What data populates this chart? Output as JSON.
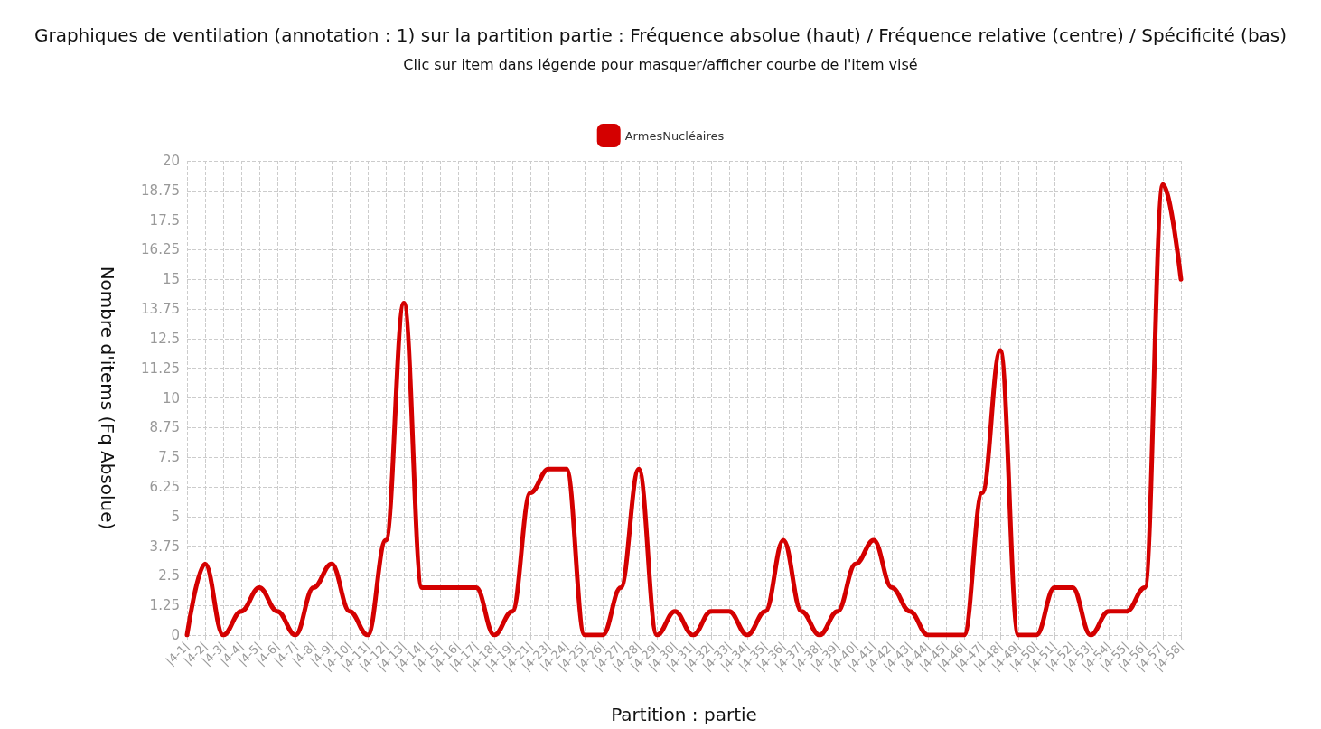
{
  "chart_data": {
    "type": "line",
    "title": "Graphiques de ventilation (annotation : 1) sur la partition partie : Fréquence absolue (haut) / Fréquence relative (centre) / Spécificité (bas)",
    "subtitle": "Clic sur item dans légende pour masquer/afficher courbe de l'item visé",
    "xlabel": "Partition : partie",
    "ylabel": "Nombre d'items (Fq Absolue)",
    "categories": [
      "|4-1|",
      "|4-2|",
      "|4-3|",
      "|4-4|",
      "|4-5|",
      "|4-6|",
      "|4-7|",
      "|4-8|",
      "|4-9|",
      "|4-10|",
      "|4-11|",
      "|4-12|",
      "|4-13|",
      "|4-14|",
      "|4-15|",
      "|4-16|",
      "|4-17|",
      "|4-18|",
      "|4-19|",
      "|4-21|",
      "|4-23|",
      "|4-24|",
      "|4-25|",
      "|4-26|",
      "|4-27|",
      "|4-28|",
      "|4-29|",
      "|4-30|",
      "|4-31|",
      "|4-32|",
      "|4-33|",
      "|4-34|",
      "|4-35|",
      "|4-36|",
      "|4-37|",
      "|4-38|",
      "|4-39|",
      "|4-40|",
      "|4-41|",
      "|4-42|",
      "|4-43|",
      "|4-44|",
      "|4-45|",
      "|4-46|",
      "|4-47|",
      "|4-48|",
      "|4-49|",
      "|4-50|",
      "|4-51|",
      "|4-52|",
      "|4-53|",
      "|4-54|",
      "|4-55|",
      "|4-56|",
      "|4-57|",
      "|4-58|"
    ],
    "series": [
      {
        "name": "ArmesNucléaires",
        "color": "#d40000",
        "values": [
          0,
          3,
          0,
          1,
          2,
          1,
          0,
          2,
          3,
          1,
          0,
          4,
          14,
          2,
          2,
          2,
          2,
          0,
          1,
          6,
          7,
          7,
          0,
          0,
          2,
          7,
          0,
          1,
          0,
          1,
          1,
          0,
          1,
          4,
          1,
          0,
          1,
          3,
          4,
          2,
          1,
          0,
          0,
          0,
          6,
          12,
          0,
          0,
          2,
          2,
          0,
          1,
          1,
          2,
          19,
          15
        ]
      }
    ],
    "ylim": [
      0,
      20
    ],
    "yticks": [
      0,
      1.25,
      2.5,
      3.75,
      5,
      6.25,
      7.5,
      8.75,
      10,
      11.25,
      12.5,
      13.75,
      15,
      16.25,
      17.5,
      18.75,
      20
    ],
    "grid": true,
    "legend": "top",
    "marker": "none",
    "line_style": "solid"
  }
}
